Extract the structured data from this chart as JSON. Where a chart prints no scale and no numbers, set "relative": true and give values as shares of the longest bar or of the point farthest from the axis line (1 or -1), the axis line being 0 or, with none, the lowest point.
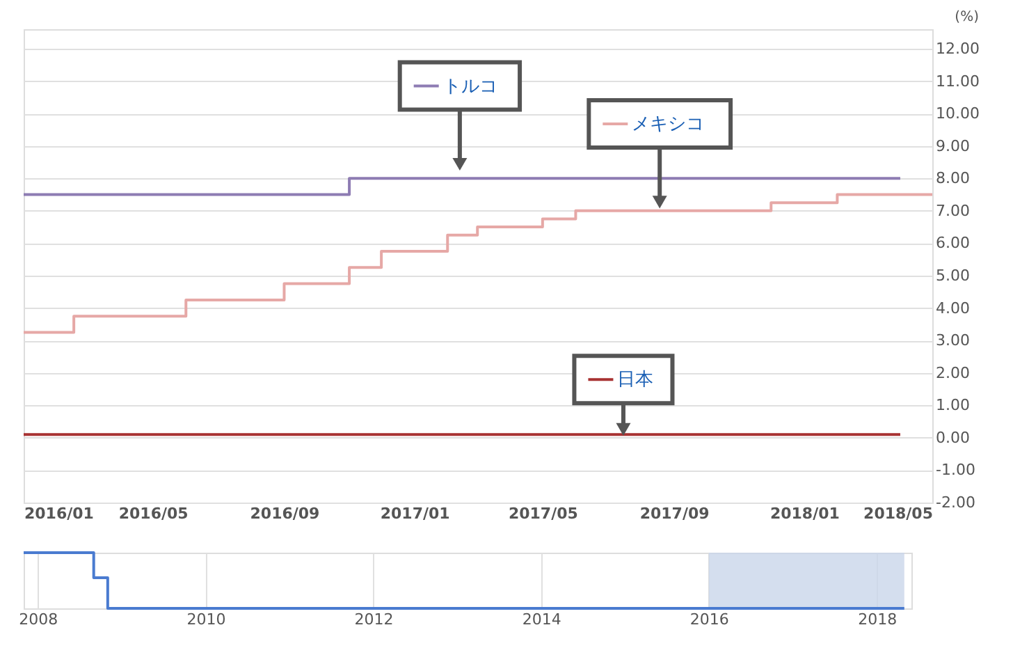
{
  "chart_data": [
    {
      "type": "step",
      "ylabel": "(%)",
      "xlim": [
        "2016-01-01",
        "2018-05-01"
      ],
      "ylim": [
        -2,
        12.6
      ],
      "xticks": [
        {
          "value": "2016-01-01",
          "label": "2016/01"
        },
        {
          "value": "2016-05-01",
          "label": "2016/05"
        },
        {
          "value": "2016-09-01",
          "label": "2016/09"
        },
        {
          "value": "2017-01-01",
          "label": "2017/01"
        },
        {
          "value": "2017-05-01",
          "label": "2017/05"
        },
        {
          "value": "2017-09-01",
          "label": "2017/09"
        },
        {
          "value": "2018-01-01",
          "label": "2018/01"
        },
        {
          "value": "2018-05-01",
          "label": "2018/05"
        }
      ],
      "yticks": [
        {
          "value": -2,
          "label": "-2.00"
        },
        {
          "value": -1,
          "label": "-1.00"
        },
        {
          "value": 0,
          "label": "0.00"
        },
        {
          "value": 1,
          "label": "1.00"
        },
        {
          "value": 2,
          "label": "2.00"
        },
        {
          "value": 3,
          "label": "3.00"
        },
        {
          "value": 4,
          "label": "4.00"
        },
        {
          "value": 5,
          "label": "5.00"
        },
        {
          "value": 6,
          "label": "6.00"
        },
        {
          "value": 7,
          "label": "7.00"
        },
        {
          "value": 8,
          "label": "8.00"
        },
        {
          "value": 9,
          "label": "9.00"
        },
        {
          "value": 10,
          "label": "10.00"
        },
        {
          "value": 11,
          "label": "11.00"
        },
        {
          "value": 12,
          "label": "12.00"
        }
      ],
      "grid": "y",
      "legend": "top",
      "line_style": "solid",
      "marker": "none",
      "series": [
        {
          "name": "トルコ",
          "color": "#8e7cb3",
          "x": [
            "2016-01-01",
            "2016-11-01",
            "2018-04-01"
          ],
          "values": [
            7.5,
            8.0,
            8.0
          ]
        },
        {
          "name": "メキシコ",
          "color": "#e6a8a6",
          "x": [
            "2016-01-01",
            "2016-02-17",
            "2016-06-01",
            "2016-09-01",
            "2016-11-01",
            "2016-12-01",
            "2017-02-01",
            "2017-03-01",
            "2017-05-01",
            "2017-06-01",
            "2017-12-01",
            "2018-02-01",
            "2018-05-01"
          ],
          "values": [
            3.25,
            3.75,
            4.25,
            4.75,
            5.25,
            5.75,
            6.25,
            6.5,
            6.75,
            7.0,
            7.25,
            7.5,
            7.5
          ]
        },
        {
          "name": "日本",
          "color": "#a83232",
          "x": [
            "2016-01-01",
            "2018-04-01"
          ],
          "values": [
            0.1,
            0.1
          ]
        }
      ]
    },
    {
      "type": "step",
      "relative": true,
      "xlim": [
        "2007-11-01",
        "2018-06-01"
      ],
      "xticks": [
        "2008",
        "2010",
        "2012",
        "2014",
        "2016",
        "2018"
      ],
      "grid": "x",
      "bands": [
        {
          "axis": "x",
          "from": "2016-01-01",
          "to": "2018-05-01",
          "color": "#c9d6ea"
        }
      ],
      "series": [
        {
          "color": "#4a7bd0",
          "x": [
            "2007-11-01",
            "2008-09-01",
            "2008-11-01",
            "2018-05-01"
          ],
          "values": [
            1,
            0.55,
            0,
            0
          ]
        }
      ]
    }
  ]
}
